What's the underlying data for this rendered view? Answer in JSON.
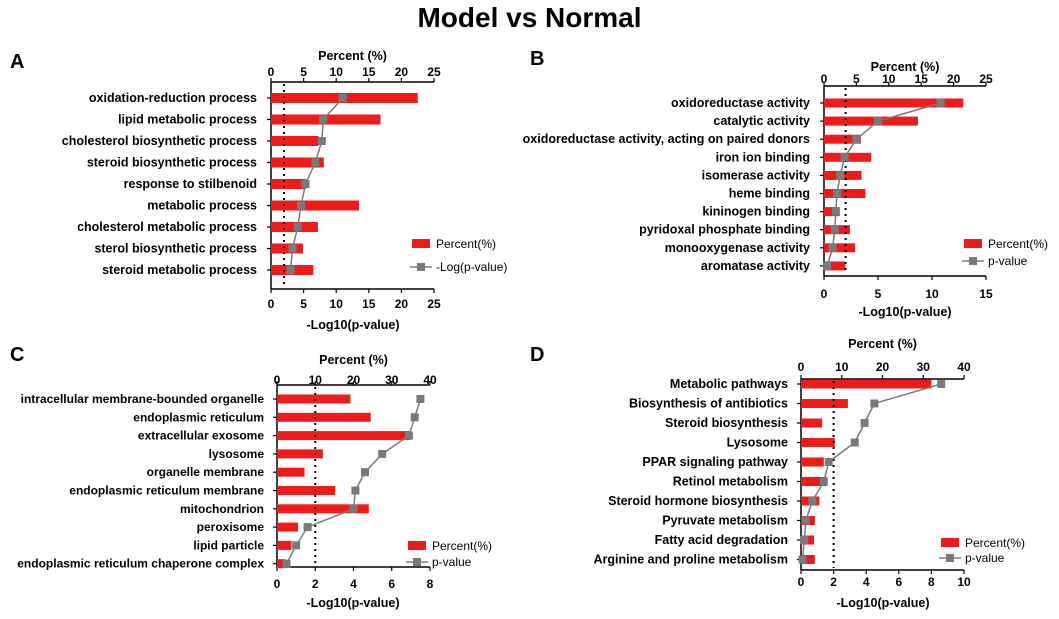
{
  "title": "Model vs Normal",
  "colors": {
    "bar": "#ee1b1b",
    "line": "#7a7a7a",
    "text": "#000000"
  },
  "chart_data": [
    {
      "panel": "A",
      "type": "bar",
      "title": "",
      "top_axis_label": "Percent (%)",
      "top_ticks": [
        "0",
        "5",
        "10",
        "15",
        "20",
        "25"
      ],
      "top_range": [
        0,
        25
      ],
      "bottom_axis_label": "-Log10(p-value)",
      "bottom_ticks": [
        "0",
        "5",
        "10",
        "15",
        "20",
        "25"
      ],
      "bottom_range": [
        0,
        25
      ],
      "categories": [
        "oxidation-reduction process",
        "lipid metabolic process",
        "cholesterol biosynthetic process",
        "steroid biosynthetic process",
        "response to stilbenoid",
        "metabolic process",
        "cholesterol metabolic process",
        "sterol biosynthetic process",
        "steroid metabolic process"
      ],
      "series": [
        {
          "name": "Percent(%)",
          "kind": "bar",
          "values": [
            22.5,
            16.8,
            7.3,
            8.1,
            5.4,
            13.5,
            7.2,
            4.9,
            6.5
          ]
        },
        {
          "name": "-Log(p-value)",
          "kind": "line",
          "values": [
            11.0,
            8.0,
            7.8,
            6.8,
            5.3,
            4.6,
            4.1,
            3.3,
            3.0
          ]
        }
      ],
      "threshold": 2,
      "legend": "bottom-right"
    },
    {
      "panel": "B",
      "type": "bar",
      "title": "",
      "top_axis_label": "Percent (%)",
      "top_ticks": [
        "0",
        "5",
        "10",
        "15",
        "20",
        "25"
      ],
      "top_range": [
        0,
        25
      ],
      "bottom_axis_label": "-Log10(p-value)",
      "bottom_ticks": [
        "0",
        "5",
        "10",
        "15"
      ],
      "bottom_range": [
        0,
        15
      ],
      "categories": [
        "oxidoreductase activity",
        "catalytic activity",
        "oxidoreductase activity, acting on paired donors",
        "iron ion binding",
        "isomerase activity",
        "heme binding",
        "kininogen binding",
        "pyridoxal phosphate binding",
        "monooxygenase activity",
        "aromatase activity"
      ],
      "series": [
        {
          "name": "Percent(%)",
          "kind": "bar",
          "values": [
            21.5,
            14.5,
            5.7,
            7.3,
            5.8,
            6.4,
            2.4,
            4.0,
            4.8,
            3.3
          ]
        },
        {
          "name": "p-value",
          "kind": "line",
          "values": [
            10.8,
            5.0,
            3.0,
            1.9,
            1.5,
            1.2,
            1.1,
            1.0,
            0.8,
            0.3
          ]
        }
      ],
      "threshold": 2,
      "legend": "bottom-right"
    },
    {
      "panel": "C",
      "type": "bar",
      "title": "",
      "top_axis_label": "Percent (%)",
      "top_ticks": [
        "0",
        "10",
        "20",
        "30",
        "40"
      ],
      "top_range": [
        0,
        40
      ],
      "bottom_axis_label": "-Log10(p-value)",
      "bottom_ticks": [
        "0",
        "2",
        "4",
        "6",
        "8"
      ],
      "bottom_range": [
        0,
        8
      ],
      "categories": [
        "intracellular membrane-bounded organelle",
        "endoplasmic reticulum",
        "extracellular exosome",
        "lysosome",
        "organelle membrane",
        "endoplasmic reticulum membrane",
        "mitochondrion",
        "peroxisome",
        "lipid particle",
        "endoplasmic reticulum chaperone complex"
      ],
      "series": [
        {
          "name": "Percent(%)",
          "kind": "bar",
          "values": [
            19.2,
            24.5,
            34.8,
            12.0,
            7.2,
            15.2,
            24.0,
            5.5,
            3.8,
            2.3
          ]
        },
        {
          "name": "p-value",
          "kind": "line",
          "values": [
            7.5,
            7.2,
            6.9,
            5.5,
            4.6,
            4.1,
            4.0,
            1.6,
            1.0,
            0.5
          ]
        }
      ],
      "threshold": 2,
      "legend": "bottom-right"
    },
    {
      "panel": "D",
      "type": "bar",
      "title": "",
      "top_axis_label": "Percent (%)",
      "top_ticks": [
        "0",
        "10",
        "20",
        "30",
        "40"
      ],
      "top_range": [
        0,
        40
      ],
      "bottom_axis_label": "-Log10(p-value)",
      "bottom_ticks": [
        "0",
        "2",
        "4",
        "6",
        "8",
        "10"
      ],
      "bottom_range": [
        0,
        10
      ],
      "categories": [
        "Metabolic pathways",
        "Biosynthesis of antibiotics",
        "Steroid biosynthesis",
        "Lysosome",
        "PPAR signaling pathway",
        "Retinol metabolism",
        "Steroid hormone biosynthesis",
        "Pyruvate metabolism",
        "Fatty acid degradation",
        "Arginine and proline metabolism"
      ],
      "series": [
        {
          "name": "Percent(%)",
          "kind": "bar",
          "values": [
            32.0,
            11.5,
            5.2,
            8.3,
            5.6,
            6.3,
            4.5,
            3.4,
            3.2,
            3.4
          ]
        },
        {
          "name": "p-value",
          "kind": "line",
          "values": [
            8.6,
            4.5,
            3.9,
            3.3,
            1.7,
            1.4,
            0.7,
            0.3,
            0.2,
            0.1
          ]
        }
      ],
      "threshold": 2,
      "legend": "bottom-right"
    }
  ]
}
